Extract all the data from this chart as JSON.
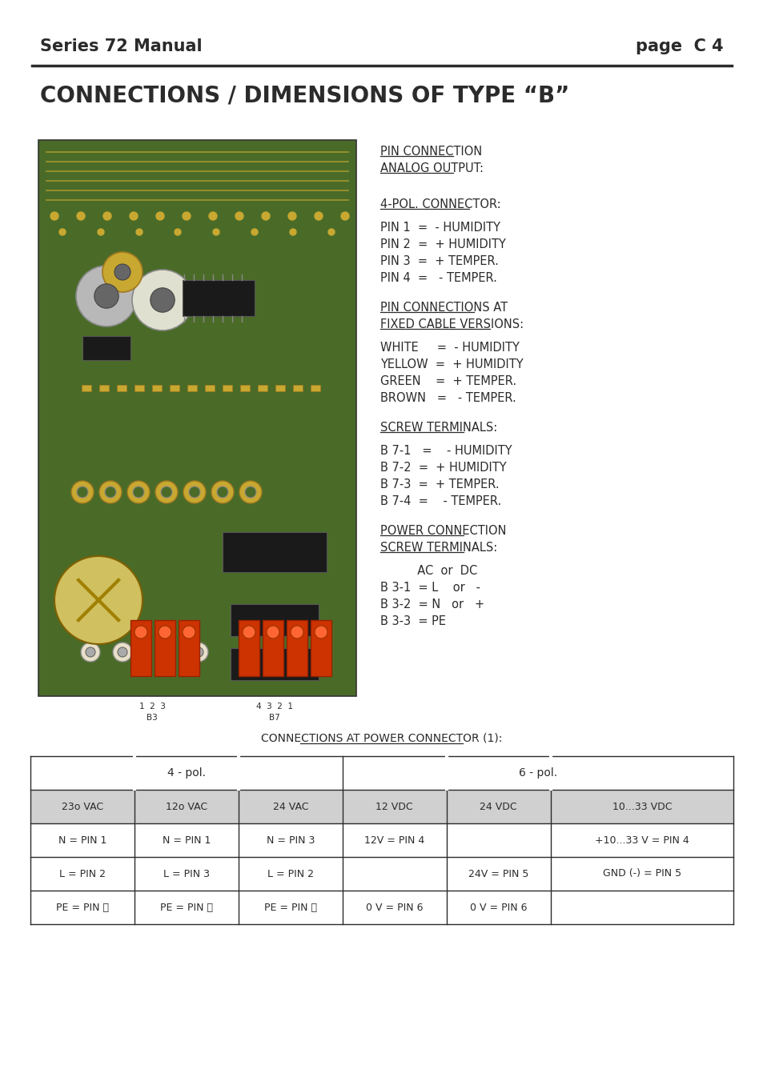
{
  "page_header_left": "Series 72 Manual",
  "page_header_right": "page  C 4",
  "page_title": "CONNECTIONS / DIMENSIONS OF TYPE “B”",
  "bg_color": "#ffffff",
  "text_color": "#2b2b2b",
  "header_font_size": 15,
  "title_font_size": 20,
  "body_font_size": 10,
  "sections": [
    {
      "heading": "PIN CONNECTION\nANALOG OUTPUT:",
      "underline": true,
      "lines": []
    },
    {
      "heading": "4-POL. CONNECTOR:",
      "underline": true,
      "lines": [
        "PIN 1  =  - HUMIDITY",
        "PIN 2  =  + HUMIDITY",
        "PIN 3  =  + TEMPER.",
        "PIN 4  =   - TEMPER."
      ]
    },
    {
      "heading": "PIN CONNECTIONS AT\nFIXED CABLE VERSIONS:",
      "underline": true,
      "lines": [
        "WHITE     =  - HUMIDITY",
        "YELLOW  =  + HUMIDITY",
        "GREEN    =  + TEMPER.",
        "BROWN   =   - TEMPER."
      ]
    },
    {
      "heading": "SCREW TERMINALS:",
      "underline": true,
      "lines": [
        "B 7-1   =    - HUMIDITY",
        "B 7-2  =  + HUMIDITY",
        "B 7-3  =  + TEMPER.",
        "B 7-4  =    - TEMPER."
      ]
    },
    {
      "heading": "POWER CONNECTION\nSCREW TERMINALS:",
      "underline": true,
      "lines": [
        "          AC  or  DC",
        "B 3-1  = L    or   -",
        "B 3-2  = N   or   +",
        "B 3-3  = PE"
      ]
    }
  ],
  "table_title": "CONNECTIONS AT POWER CONNECTOR (1):",
  "table_header_row2": [
    "23o VAC",
    "12o VAC",
    "24 VAC",
    "12 VDC",
    "24 VDC",
    "10...33 VDC"
  ],
  "table_data": [
    [
      "N = PIN 1",
      "N = PIN 1",
      "N = PIN 3",
      "12V = PIN 4",
      "",
      "+10...33 V = PIN 4"
    ],
    [
      "L = PIN 2",
      "L = PIN 3",
      "L = PIN 2",
      "",
      "24V = PIN 5",
      "GND (-) = PIN 5"
    ],
    [
      "PE = PIN ⏚",
      "PE = PIN ⏚",
      "PE = PIN ⏚",
      "0 V = PIN 6",
      "0 V = PIN 6",
      ""
    ]
  ]
}
